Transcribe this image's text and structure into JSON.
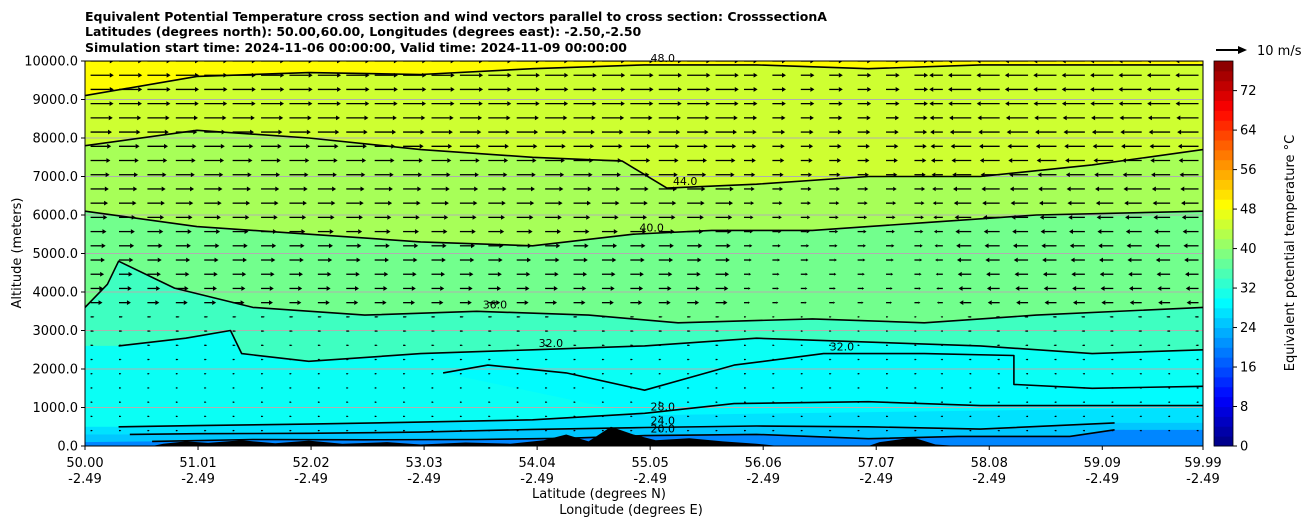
{
  "chart_data": {
    "type": "contour",
    "title_lines": [
      "Equivalent Potential Temperature cross section and wind vectors parallel to cross section: CrosssectionA",
      "Latitudes (degrees north): 50.00,60.00, Longitudes (degrees east): -2.50,-2.50",
      "Simulation start time: 2024-11-06 00:00:00, Valid time: 2024-11-09 00:00:00"
    ],
    "ylabel": "Altitude (meters)",
    "xlabel_lat": "Latitude (degrees N)",
    "xlabel_lon": "Longitude (degrees E)",
    "ylim": [
      0,
      10000
    ],
    "y_ticks": [
      0,
      1000,
      2000,
      3000,
      4000,
      5000,
      6000,
      7000,
      8000,
      9000,
      10000
    ],
    "y_tick_labels": [
      "0.0",
      "1000.0",
      "2000.0",
      "3000.0",
      "4000.0",
      "5000.0",
      "6000.0",
      "7000.0",
      "8000.0",
      "9000.0",
      "10000.0"
    ],
    "x_range": [
      50.0,
      59.99
    ],
    "x_ticks_lat": [
      "50.00",
      "51.01",
      "52.02",
      "53.03",
      "54.04",
      "55.05",
      "56.06",
      "57.07",
      "58.08",
      "59.09",
      "59.99"
    ],
    "x_ticks_lon": [
      "-2.49",
      "-2.49",
      "-2.49",
      "-2.49",
      "-2.49",
      "-2.49",
      "-2.49",
      "-2.49",
      "-2.49",
      "-2.49",
      "-2.49"
    ],
    "x_tick_values": [
      50.0,
      51.01,
      52.02,
      53.03,
      54.04,
      55.05,
      56.06,
      57.07,
      58.08,
      59.09,
      59.99
    ],
    "colorbar": {
      "label": "Equivalent potential temperature °C",
      "range": [
        0,
        78
      ],
      "ticks": [
        0,
        8,
        16,
        24,
        32,
        40,
        48,
        56,
        64,
        72
      ],
      "tick_labels": [
        "0",
        "8",
        "16",
        "24",
        "32",
        "40",
        "48",
        "56",
        "64",
        "72"
      ],
      "levels_step": 2,
      "colormap": "jet"
    },
    "wind_key_label": "10 m/s",
    "contour_lines": [
      {
        "value": 20,
        "label": "20.0",
        "points": [
          [
            50.6,
            120
          ],
          [
            51.5,
            170
          ],
          [
            52.5,
            160
          ],
          [
            53.5,
            170
          ],
          [
            54.3,
            200
          ],
          [
            55.0,
            270
          ],
          [
            56.0,
            300
          ],
          [
            57.0,
            190
          ],
          [
            57.8,
            250
          ],
          [
            58.8,
            250
          ],
          [
            59.2,
            420
          ]
        ]
      },
      {
        "value": 24,
        "label": "24.0",
        "points": [
          [
            50.4,
            300
          ],
          [
            51.0,
            320
          ],
          [
            52.0,
            330
          ],
          [
            53.0,
            360
          ],
          [
            54.0,
            430
          ],
          [
            55.0,
            480
          ],
          [
            56.0,
            520
          ],
          [
            57.0,
            500
          ],
          [
            58.0,
            440
          ],
          [
            59.2,
            600
          ]
        ]
      },
      {
        "value": 28,
        "label": "28.0",
        "points": [
          [
            50.3,
            500
          ],
          [
            51.0,
            530
          ],
          [
            52.0,
            570
          ],
          [
            53.0,
            620
          ],
          [
            54.0,
            680
          ],
          [
            55.0,
            850
          ],
          [
            55.8,
            1100
          ],
          [
            57.0,
            1150
          ],
          [
            58.0,
            1050
          ],
          [
            59.0,
            1050
          ],
          [
            59.99,
            1050
          ]
        ]
      },
      {
        "value": 32,
        "label": "32.0",
        "points": [
          [
            53.2,
            1900
          ],
          [
            53.6,
            2100
          ],
          [
            54.3,
            1900
          ],
          [
            55.0,
            1450
          ],
          [
            55.8,
            2100
          ],
          [
            56.6,
            2400
          ],
          [
            57.5,
            2400
          ],
          [
            58.3,
            2350
          ],
          [
            58.3,
            1600
          ],
          [
            59.0,
            1500
          ],
          [
            59.99,
            1550
          ]
        ]
      },
      {
        "value": 32,
        "label": "32.0",
        "points": [
          [
            50.3,
            2600
          ],
          [
            50.9,
            2800
          ],
          [
            51.3,
            3000
          ],
          [
            51.4,
            2400
          ],
          [
            52.0,
            2200
          ],
          [
            53.0,
            2400
          ],
          [
            54.0,
            2500
          ],
          [
            55.0,
            2600
          ],
          [
            56.0,
            2800
          ],
          [
            57.0,
            2700
          ],
          [
            58.0,
            2600
          ],
          [
            59.0,
            2400
          ],
          [
            59.99,
            2500
          ]
        ]
      },
      {
        "value": 36,
        "label": "36.0",
        "points": [
          [
            50.0,
            3600
          ],
          [
            50.2,
            4200
          ],
          [
            50.3,
            4800
          ],
          [
            50.8,
            4100
          ],
          [
            51.5,
            3600
          ],
          [
            52.5,
            3400
          ],
          [
            53.5,
            3500
          ],
          [
            54.5,
            3400
          ],
          [
            55.3,
            3200
          ],
          [
            56.5,
            3300
          ],
          [
            57.5,
            3200
          ],
          [
            58.5,
            3400
          ],
          [
            59.99,
            3600
          ]
        ]
      },
      {
        "value": 40,
        "label": "40.0",
        "points": [
          [
            50.0,
            6100
          ],
          [
            51.0,
            5700
          ],
          [
            52.0,
            5500
          ],
          [
            53.0,
            5300
          ],
          [
            54.0,
            5200
          ],
          [
            54.9,
            5500
          ],
          [
            55.6,
            5600
          ],
          [
            56.5,
            5600
          ],
          [
            57.5,
            5800
          ],
          [
            58.5,
            6000
          ],
          [
            59.99,
            6100
          ]
        ]
      },
      {
        "value": 44,
        "label": "44.0",
        "points": [
          [
            50.0,
            7800
          ],
          [
            51.0,
            8200
          ],
          [
            52.0,
            8000
          ],
          [
            53.0,
            7700
          ],
          [
            54.0,
            7500
          ],
          [
            54.8,
            7400
          ],
          [
            55.2,
            6700
          ],
          [
            56.0,
            6800
          ],
          [
            57.0,
            7000
          ],
          [
            58.0,
            7000
          ],
          [
            59.0,
            7300
          ],
          [
            59.99,
            7700
          ]
        ]
      },
      {
        "value": 48,
        "label": "48.0",
        "points": [
          [
            50.0,
            9100
          ],
          [
            51.0,
            9600
          ],
          [
            52.0,
            9700
          ],
          [
            53.0,
            9650
          ],
          [
            54.0,
            9800
          ],
          [
            55.0,
            9900
          ],
          [
            56.0,
            9900
          ],
          [
            57.0,
            9800
          ],
          [
            58.0,
            9900
          ],
          [
            59.99,
            9900
          ]
        ]
      }
    ],
    "wind_vectors_description": "wind vectors parallel to cross section",
    "terrain": "orography"
  }
}
